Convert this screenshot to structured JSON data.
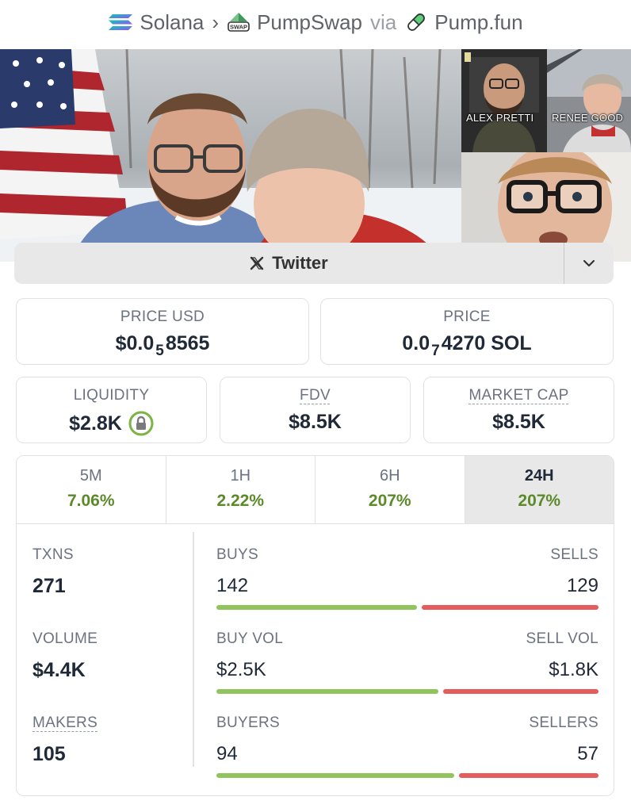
{
  "breadcrumb": {
    "chain": "Solana",
    "dex": "PumpSwap",
    "via": "via",
    "launchpad": "Pump.fun"
  },
  "banner": {
    "thumb_labels": [
      "ALEX PRETTI",
      "RENEE GOOD"
    ]
  },
  "social": {
    "label": "Twitter",
    "icon": "x-logo-icon"
  },
  "price_usd": {
    "label": "PRICE USD",
    "prefix": "$0.0",
    "subscript": "5",
    "suffix": "8565"
  },
  "price_native": {
    "label": "PRICE",
    "prefix": "0.0",
    "subscript": "7",
    "suffix": "4270 SOL"
  },
  "liquidity": {
    "label": "LIQUIDITY",
    "value": "$2.8K",
    "icon": "lock-icon"
  },
  "fdv": {
    "label": "FDV",
    "value": "$8.5K"
  },
  "market_cap": {
    "label": "MARKET CAP",
    "value": "$8.5K"
  },
  "timeframes": [
    {
      "label": "5M",
      "change": "7.06%"
    },
    {
      "label": "1H",
      "change": "2.22%"
    },
    {
      "label": "6H",
      "change": "207%"
    },
    {
      "label": "24H",
      "change": "207%",
      "active": true
    }
  ],
  "txns": {
    "label": "TXNS",
    "value": "271",
    "buys_label": "BUYS",
    "buys": "142",
    "sells_label": "SELLS",
    "sells": "129",
    "buy_fraction": 0.524
  },
  "volume": {
    "label": "VOLUME",
    "value": "$4.4K",
    "buy_label": "BUY VOL",
    "buy": "$2.5K",
    "sell_label": "SELL VOL",
    "sell": "$1.8K",
    "buy_fraction": 0.58
  },
  "makers": {
    "label": "MAKERS",
    "value": "105",
    "buyers_label": "BUYERS",
    "buyers": "94",
    "sellers_label": "SELLERS",
    "sellers": "57",
    "buy_fraction": 0.623
  },
  "colors": {
    "positive": "#5b8a2a",
    "buy_bar": "#92c45e",
    "sell_bar": "#e45c5c",
    "active_tab": "#e8e8e8"
  }
}
